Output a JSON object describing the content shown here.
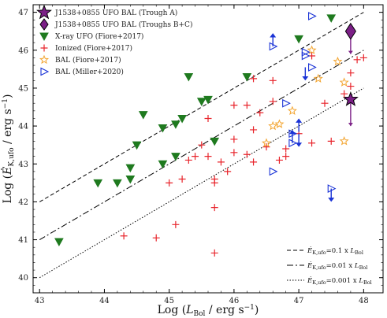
{
  "chart_data": {
    "type": "scatter",
    "xlabel": "Log (L_Bol / erg s^-1)",
    "ylabel": "Log (Ė_K,ufo / erg s^-1)",
    "xlim": [
      42.9,
      48.3
    ],
    "ylim": [
      39.6,
      47.2
    ],
    "xticks": [
      43,
      44,
      45,
      46,
      47,
      48
    ],
    "yticks": [
      40,
      41,
      42,
      43,
      44,
      45,
      46,
      47
    ],
    "grid": false,
    "legend_position": "top-left",
    "series": [
      {
        "name": "J1538+0855 UFO BAL (Trough A)",
        "marker": "star",
        "color": "#7b1f86",
        "points": [
          [
            47.8,
            44.7
          ]
        ],
        "errors": [
          [
            44.7,
            44.0
          ]
        ]
      },
      {
        "name": "J1538+0855 UFO BAL (Troughs B+C)",
        "marker": "diamond",
        "color": "#7b1f86",
        "points": [
          [
            47.8,
            46.5
          ]
        ],
        "errors": [
          [
            46.5,
            45.9
          ]
        ]
      },
      {
        "name": "X-ray UFO (Fiore+2017)",
        "marker": "triangle-down",
        "color": "#1f7a1f",
        "points": [
          [
            43.3,
            40.95
          ],
          [
            43.9,
            42.5
          ],
          [
            44.2,
            42.5
          ],
          [
            44.4,
            42.6
          ],
          [
            44.4,
            42.9
          ],
          [
            44.5,
            43.5
          ],
          [
            44.6,
            44.3
          ],
          [
            44.9,
            43.0
          ],
          [
            44.9,
            43.95
          ],
          [
            45.1,
            43.2
          ],
          [
            45.1,
            44.05
          ],
          [
            45.2,
            44.2
          ],
          [
            45.3,
            45.3
          ],
          [
            45.5,
            44.65
          ],
          [
            45.6,
            44.7
          ],
          [
            45.7,
            43.6
          ],
          [
            46.2,
            45.3
          ],
          [
            47.0,
            46.3
          ],
          [
            47.5,
            46.85
          ]
        ]
      },
      {
        "name": "Ionized (Fiore+2017)",
        "marker": "plus",
        "color": "#e8242b",
        "points": [
          [
            44.3,
            41.1
          ],
          [
            44.8,
            41.05
          ],
          [
            45.0,
            42.5
          ],
          [
            45.1,
            41.4
          ],
          [
            45.2,
            42.6
          ],
          [
            45.3,
            43.1
          ],
          [
            45.4,
            43.2
          ],
          [
            45.5,
            43.5
          ],
          [
            45.6,
            44.2
          ],
          [
            45.6,
            43.2
          ],
          [
            45.7,
            42.6
          ],
          [
            45.7,
            42.5
          ],
          [
            45.7,
            41.85
          ],
          [
            45.7,
            40.65
          ],
          [
            45.8,
            43.05
          ],
          [
            45.9,
            42.8
          ],
          [
            46.0,
            43.3
          ],
          [
            46.0,
            44.55
          ],
          [
            46.0,
            43.65
          ],
          [
            46.2,
            43.25
          ],
          [
            46.2,
            44.55
          ],
          [
            46.3,
            43.9
          ],
          [
            46.3,
            43.05
          ],
          [
            46.3,
            45.25
          ],
          [
            46.4,
            44.35
          ],
          [
            46.5,
            43.45
          ],
          [
            46.6,
            45.2
          ],
          [
            46.6,
            44.65
          ],
          [
            46.7,
            43.1
          ],
          [
            46.8,
            43.2
          ],
          [
            46.8,
            43.4
          ],
          [
            47.0,
            43.8
          ],
          [
            47.2,
            43.55
          ],
          [
            47.2,
            45.85
          ],
          [
            47.4,
            44.6
          ],
          [
            47.5,
            43.6
          ],
          [
            47.7,
            44.85
          ],
          [
            47.8,
            45.4
          ],
          [
            47.9,
            45.75
          ],
          [
            48.0,
            45.8
          ],
          [
            47.8,
            45.05
          ]
        ]
      },
      {
        "name": "BAL (Fiore+2017)",
        "marker": "star-open",
        "color": "#f3a531",
        "points": [
          [
            46.5,
            43.55
          ],
          [
            46.6,
            44.0
          ],
          [
            46.7,
            44.05
          ],
          [
            46.9,
            44.4
          ],
          [
            47.2,
            46.0
          ],
          [
            47.3,
            45.25
          ],
          [
            47.6,
            45.7
          ],
          [
            47.7,
            45.15
          ],
          [
            47.7,
            43.6
          ]
        ]
      },
      {
        "name": "BAL (Miller+2020)",
        "marker": "triangle-right-open",
        "color": "#1a33d6",
        "points": [
          [
            46.6,
            46.1
          ],
          [
            46.6,
            42.8
          ],
          [
            46.8,
            44.6
          ],
          [
            46.9,
            43.55
          ],
          [
            46.9,
            43.8
          ],
          [
            47.1,
            45.85
          ],
          [
            47.1,
            45.95
          ],
          [
            47.2,
            45.55
          ],
          [
            47.2,
            46.9
          ],
          [
            47.5,
            42.35
          ]
        ],
        "limits": [
          [
            46.6,
            46.1,
            "up"
          ],
          [
            47.1,
            45.55,
            "down"
          ],
          [
            46.9,
            43.55,
            "up"
          ],
          [
            47.0,
            43.8,
            "down"
          ],
          [
            47.5,
            42.35,
            "down"
          ],
          [
            47.0,
            43.85,
            "up"
          ]
        ]
      }
    ],
    "reference_lines": [
      {
        "name": "Ė_K,ufo=0.1 x L_Bol",
        "style": "dashed",
        "offset": -1
      },
      {
        "name": "Ė_K,ufo=0.01 x L_Bol",
        "style": "dashdot",
        "offset": -2
      },
      {
        "name": "Ė_K,ufo=0.001 x L_Bol",
        "style": "dotted",
        "offset": -3
      }
    ]
  }
}
